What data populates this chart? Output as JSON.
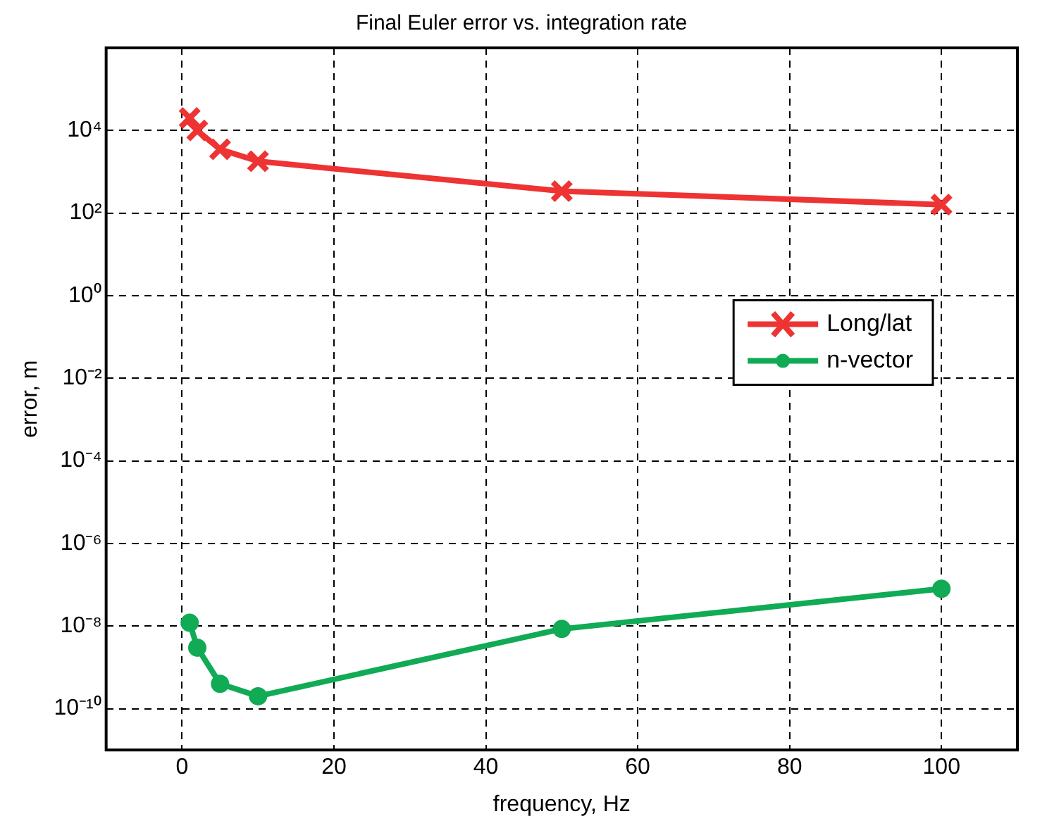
{
  "chart_data": {
    "type": "line",
    "title": "Final Euler error vs. integration rate",
    "xlabel": "frequency, Hz",
    "ylabel": "error, m",
    "log": "y",
    "grid": true,
    "legend": "right",
    "line_style": "solid",
    "x": [
      1,
      2,
      5,
      10,
      50,
      100
    ],
    "series": [
      {
        "name": "Long/lat",
        "color": "#ee3333",
        "marker": "cross",
        "values": [
          20000,
          10000,
          3500,
          1800,
          340,
          160
        ]
      },
      {
        "name": "n-vector",
        "color": "#11aa55",
        "marker": "circle",
        "values": [
          1.2e-08,
          3e-09,
          4e-10,
          2e-10,
          8.5e-09,
          8e-08
        ]
      }
    ],
    "xlim": [
      -10,
      110
    ],
    "xticks": [
      0,
      20,
      40,
      60,
      80,
      100
    ],
    "ylim": [
      1e-11,
      1000000.0
    ],
    "yticks": [
      {
        "value": 1e-10,
        "label": "10⁻¹⁰"
      },
      {
        "value": 1e-08,
        "label": "10⁻⁸"
      },
      {
        "value": 1e-06,
        "label": "10⁻⁶"
      },
      {
        "value": 0.0001,
        "label": "10⁻⁴"
      },
      {
        "value": 0.01,
        "label": "10⁻²"
      },
      {
        "value": 1,
        "label": "10⁰"
      },
      {
        "value": 100,
        "label": "10²"
      },
      {
        "value": 10000,
        "label": "10⁴"
      }
    ]
  }
}
